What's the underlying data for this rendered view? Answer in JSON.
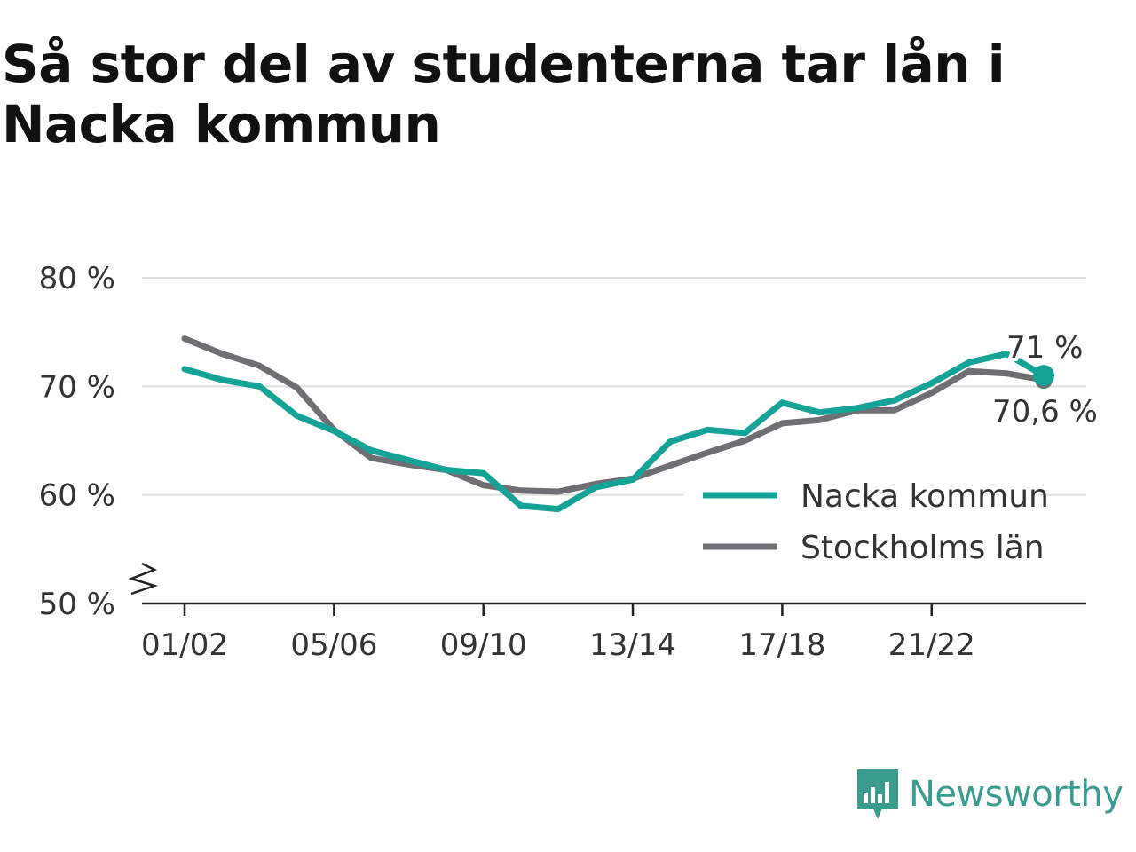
{
  "title": "Så stor del av studenterna tar lån i Nacka kommun",
  "brand": {
    "name": "Newsworthy",
    "logo_icon": "newsworthy-logo-icon"
  },
  "colors": {
    "nacka": "#14a396",
    "stockholm": "#6e6e73",
    "grid": "#dddddd",
    "axis": "#222222"
  },
  "chart_data": {
    "type": "line",
    "title": "Så stor del av studenterna tar lån i Nacka kommun",
    "xlabel": "",
    "ylabel": "",
    "ylim": [
      50,
      80
    ],
    "yticks": [
      80,
      70,
      60,
      50
    ],
    "ytick_labels": [
      "80 %",
      "70 %",
      "60 %",
      "50 %"
    ],
    "y_axis_break": true,
    "grid": true,
    "legend_position": "bottom-right",
    "x": [
      "01/02",
      "02/03",
      "03/04",
      "04/05",
      "05/06",
      "06/07",
      "07/08",
      "08/09",
      "09/10",
      "10/11",
      "11/12",
      "12/13",
      "13/14",
      "14/15",
      "15/16",
      "16/17",
      "17/18",
      "18/19",
      "19/20",
      "20/21",
      "21/22",
      "22/23",
      "23/24",
      "24/25"
    ],
    "xtick_labels": [
      "01/02",
      "05/06",
      "09/10",
      "13/14",
      "17/18",
      "21/22"
    ],
    "series": [
      {
        "name": "Nacka kommun",
        "color": "#14a396",
        "values": [
          71.6,
          70.6,
          70.0,
          67.3,
          65.9,
          64.1,
          63.2,
          62.3,
          62.0,
          59.0,
          58.7,
          60.7,
          61.4,
          64.9,
          66.0,
          65.7,
          68.5,
          67.6,
          68.0,
          68.7,
          70.3,
          72.2,
          73.0,
          71.0
        ],
        "end_label": "71 %"
      },
      {
        "name": "Stockholms län",
        "color": "#6e6e73",
        "values": [
          74.4,
          73.0,
          71.9,
          69.9,
          66.0,
          63.4,
          62.8,
          62.3,
          60.9,
          60.4,
          60.3,
          61.0,
          61.5,
          62.7,
          63.9,
          65.0,
          66.6,
          66.9,
          67.8,
          67.8,
          69.4,
          71.4,
          71.2,
          70.6
        ],
        "end_label": "70,6 %"
      }
    ]
  }
}
